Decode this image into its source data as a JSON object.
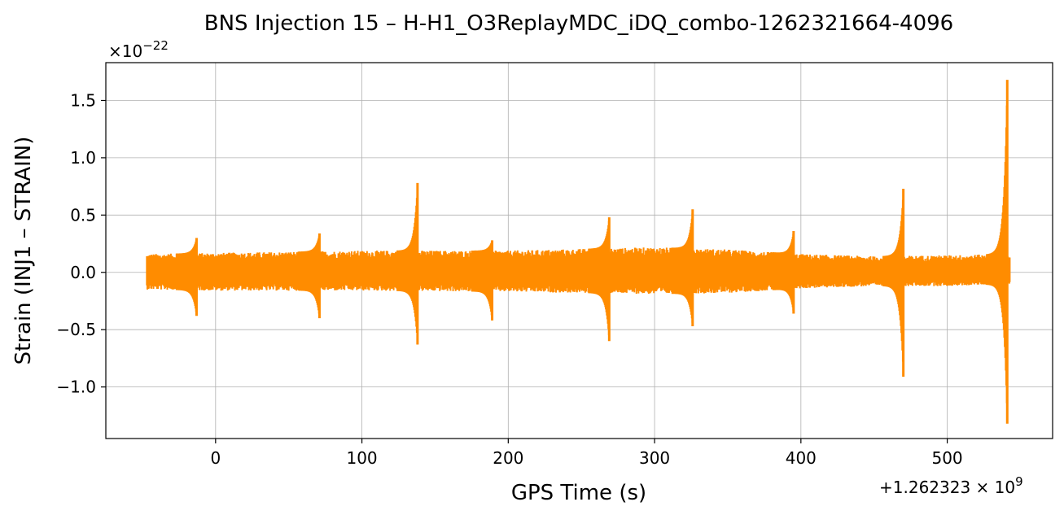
{
  "chart_data": {
    "type": "line",
    "title": "BNS Injection 15 – H-H1_O3ReplayMDC_iDQ_combo-1262321664-4096",
    "xlabel": "GPS Time (s)",
    "ylabel": "Strain (INJ1 – STRAIN)",
    "x_offset_label": "+1.262323 × 10",
    "x_offset_exp": "9",
    "y_scale_label": "×10",
    "y_scale_exp": "−22",
    "xlim": [
      -75,
      572
    ],
    "ylim": [
      -1.45,
      1.83
    ],
    "grid": true,
    "line_color": "#ff8c00",
    "xticks": [
      {
        "value": 0,
        "label": "0"
      },
      {
        "value": 100,
        "label": "100"
      },
      {
        "value": 200,
        "label": "200"
      },
      {
        "value": 300,
        "label": "300"
      },
      {
        "value": 400,
        "label": "400"
      },
      {
        "value": 500,
        "label": "500"
      }
    ],
    "yticks": [
      {
        "value": -1.0,
        "label": "−1.0"
      },
      {
        "value": -0.5,
        "label": "−0.5"
      },
      {
        "value": 0.0,
        "label": "0.0"
      },
      {
        "value": 0.5,
        "label": "0.5"
      },
      {
        "value": 1.0,
        "label": "1.0"
      },
      {
        "value": 1.5,
        "label": "1.5"
      }
    ],
    "x_range": [
      -47,
      543
    ],
    "noise_envelope": [
      {
        "x": -47,
        "upper": 0.16,
        "lower": -0.15
      },
      {
        "x": 0,
        "upper": 0.17,
        "lower": -0.16
      },
      {
        "x": 100,
        "upper": 0.19,
        "lower": -0.16
      },
      {
        "x": 200,
        "upper": 0.19,
        "lower": -0.17
      },
      {
        "x": 300,
        "upper": 0.22,
        "lower": -0.19
      },
      {
        "x": 350,
        "upper": 0.2,
        "lower": -0.18
      },
      {
        "x": 400,
        "upper": 0.16,
        "lower": -0.14
      },
      {
        "x": 450,
        "upper": 0.14,
        "lower": -0.12
      },
      {
        "x": 500,
        "upper": 0.15,
        "lower": -0.12
      },
      {
        "x": 543,
        "upper": 0.16,
        "lower": -0.1
      }
    ],
    "injections": [
      {
        "x": -13,
        "peak_max": 0.3,
        "peak_min": -0.38
      },
      {
        "x": 71,
        "peak_max": 0.34,
        "peak_min": -0.4
      },
      {
        "x": 138,
        "peak_max": 0.78,
        "peak_min": -0.63
      },
      {
        "x": 189,
        "peak_max": 0.28,
        "peak_min": -0.42
      },
      {
        "x": 269,
        "peak_max": 0.48,
        "peak_min": -0.6
      },
      {
        "x": 326,
        "peak_max": 0.55,
        "peak_min": -0.47
      },
      {
        "x": 395,
        "peak_max": 0.36,
        "peak_min": -0.36
      },
      {
        "x": 470,
        "peak_max": 0.73,
        "peak_min": -0.91
      },
      {
        "x": 541,
        "peak_max": 1.68,
        "peak_min": -1.32
      }
    ]
  }
}
